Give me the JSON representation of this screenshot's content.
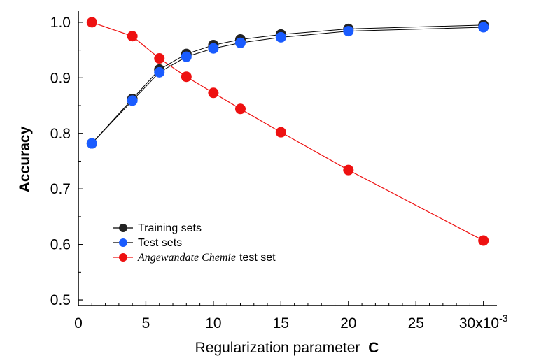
{
  "chart_data": {
    "type": "line",
    "xlabel": "Regularization parameter",
    "xlabel_symbol": "C",
    "ylabel": "Accuracy",
    "xlim": [
      0,
      0.031
    ],
    "ylim": [
      0.49,
      1.02
    ],
    "x_ticks": [
      0,
      0.005,
      0.01,
      0.015,
      0.02,
      0.025,
      0.03
    ],
    "x_tick_labels": [
      "0",
      "5",
      "10",
      "15",
      "20",
      "25",
      "30x10"
    ],
    "x_tick_exponent": "-3",
    "y_ticks": [
      0.5,
      0.6,
      0.7,
      0.8,
      0.9,
      1.0
    ],
    "y_tick_labels": [
      "0.5",
      "0.6",
      "0.7",
      "0.8",
      "0.9",
      "1.0"
    ],
    "grid": false,
    "legend_position": "lower-left",
    "series": [
      {
        "name": "Training sets",
        "color": "#222222",
        "x": [
          0.001,
          0.004,
          0.006,
          0.008,
          0.01,
          0.012,
          0.015,
          0.02,
          0.03
        ],
        "values": [
          0.782,
          0.862,
          0.915,
          0.943,
          0.959,
          0.969,
          0.978,
          0.988,
          0.995
        ]
      },
      {
        "name": "Test sets",
        "color": "#1a5cff",
        "x": [
          0.001,
          0.004,
          0.006,
          0.008,
          0.01,
          0.012,
          0.015,
          0.02,
          0.03
        ],
        "values": [
          0.782,
          0.859,
          0.91,
          0.938,
          0.953,
          0.963,
          0.973,
          0.984,
          0.991
        ]
      },
      {
        "name_italic": "Angewandate Chemie",
        "name_rest": "test set",
        "color": "#ee1111",
        "x": [
          0.001,
          0.004,
          0.006,
          0.008,
          0.01,
          0.012,
          0.015,
          0.02,
          0.03
        ],
        "values": [
          1.0,
          0.975,
          0.935,
          0.902,
          0.873,
          0.844,
          0.802,
          0.734,
          0.607
        ]
      }
    ]
  }
}
